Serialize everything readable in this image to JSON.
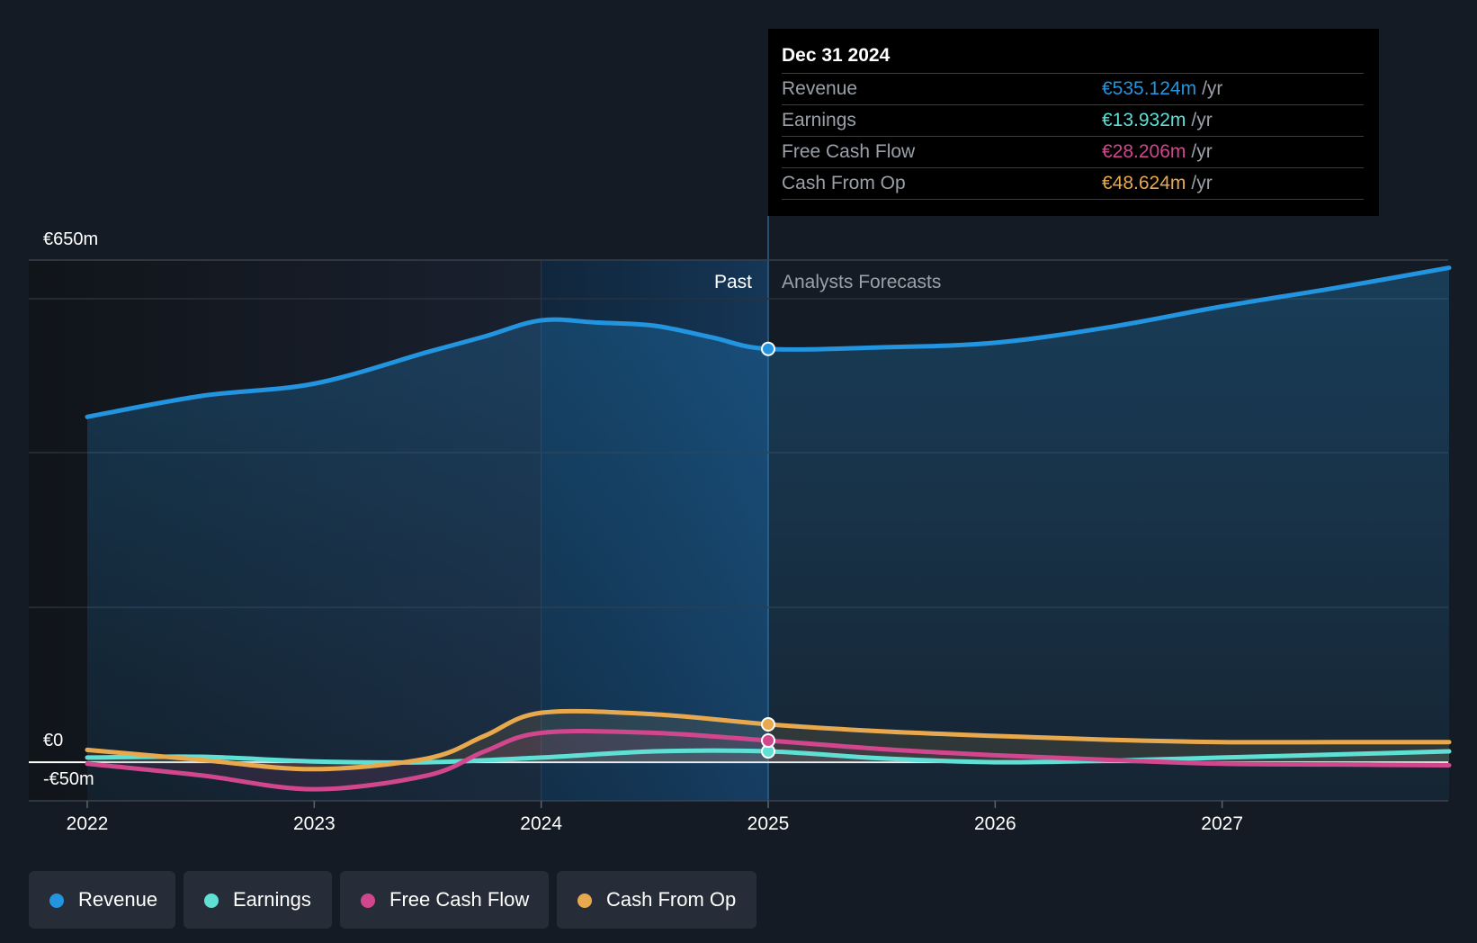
{
  "chart_data": {
    "type": "line",
    "currency": "€",
    "y_axis": {
      "top_label": "€650m",
      "zero_label": "€0",
      "bottom_label": "-€50m",
      "range": [
        -50,
        650
      ]
    },
    "x_axis": {
      "ticks": [
        "2022",
        "2023",
        "2024",
        "2025",
        "2026",
        "2027"
      ],
      "range": [
        2022.0,
        2028.0
      ]
    },
    "split_label_past": "Past",
    "split_label_forecast": "Analysts Forecasts",
    "split_x": 2025.0,
    "highlight_start_x": 2024.0,
    "series": [
      {
        "name": "Revenue",
        "color": "#2394df",
        "fill": true,
        "points": [
          [
            2022.0,
            447
          ],
          [
            2022.5,
            474
          ],
          [
            2023.0,
            490
          ],
          [
            2023.5,
            531
          ],
          [
            2023.75,
            551
          ],
          [
            2024.0,
            572
          ],
          [
            2024.25,
            569
          ],
          [
            2024.5,
            565
          ],
          [
            2024.75,
            550
          ],
          [
            2025.0,
            535
          ],
          [
            2025.5,
            537
          ],
          [
            2026.0,
            543
          ],
          [
            2026.5,
            563
          ],
          [
            2027.0,
            590
          ],
          [
            2027.5,
            614
          ],
          [
            2028.0,
            640
          ]
        ]
      },
      {
        "name": "Earnings",
        "color": "#5fe0d5",
        "fill": false,
        "points": [
          [
            2022.0,
            6
          ],
          [
            2022.5,
            7
          ],
          [
            2023.0,
            1
          ],
          [
            2023.5,
            0
          ],
          [
            2024.0,
            6
          ],
          [
            2024.5,
            14
          ],
          [
            2025.0,
            14
          ],
          [
            2025.5,
            5
          ],
          [
            2026.0,
            0
          ],
          [
            2026.5,
            2
          ],
          [
            2027.0,
            6
          ],
          [
            2027.5,
            10
          ],
          [
            2028.0,
            14
          ]
        ]
      },
      {
        "name": "Free Cash Flow",
        "color": "#d1478e",
        "fill": false,
        "points": [
          [
            2022.0,
            -2
          ],
          [
            2022.5,
            -17
          ],
          [
            2023.0,
            -35
          ],
          [
            2023.5,
            -17
          ],
          [
            2023.75,
            14
          ],
          [
            2024.0,
            38
          ],
          [
            2024.5,
            38
          ],
          [
            2025.0,
            28
          ],
          [
            2025.5,
            17
          ],
          [
            2026.0,
            9
          ],
          [
            2026.5,
            3
          ],
          [
            2027.0,
            -2
          ],
          [
            2027.5,
            -3
          ],
          [
            2028.0,
            -4
          ]
        ]
      },
      {
        "name": "Cash From Op",
        "color": "#e8a94e",
        "fill": false,
        "points": [
          [
            2022.0,
            16
          ],
          [
            2022.5,
            3
          ],
          [
            2023.0,
            -9
          ],
          [
            2023.5,
            5
          ],
          [
            2023.75,
            34
          ],
          [
            2024.0,
            64
          ],
          [
            2024.5,
            62
          ],
          [
            2025.0,
            49
          ],
          [
            2025.5,
            40
          ],
          [
            2026.0,
            34
          ],
          [
            2026.5,
            29
          ],
          [
            2027.0,
            26
          ],
          [
            2027.5,
            26
          ],
          [
            2028.0,
            26
          ]
        ]
      }
    ],
    "tooltip": {
      "date": "Dec 31 2024",
      "rows": [
        {
          "label": "Revenue",
          "value": "€535.124m",
          "unit": "/yr",
          "color": "#2394df"
        },
        {
          "label": "Earnings",
          "value": "€13.932m",
          "unit": "/yr",
          "color": "#5fe0d5"
        },
        {
          "label": "Free Cash Flow",
          "value": "€28.206m",
          "unit": "/yr",
          "color": "#d1478e"
        },
        {
          "label": "Cash From Op",
          "value": "€48.624m",
          "unit": "/yr",
          "color": "#e8a94e"
        }
      ]
    }
  },
  "legend": [
    {
      "label": "Revenue",
      "color": "#2394df"
    },
    {
      "label": "Earnings",
      "color": "#5fe0d5"
    },
    {
      "label": "Free Cash Flow",
      "color": "#d1478e"
    },
    {
      "label": "Cash From Op",
      "color": "#e8a94e"
    }
  ]
}
